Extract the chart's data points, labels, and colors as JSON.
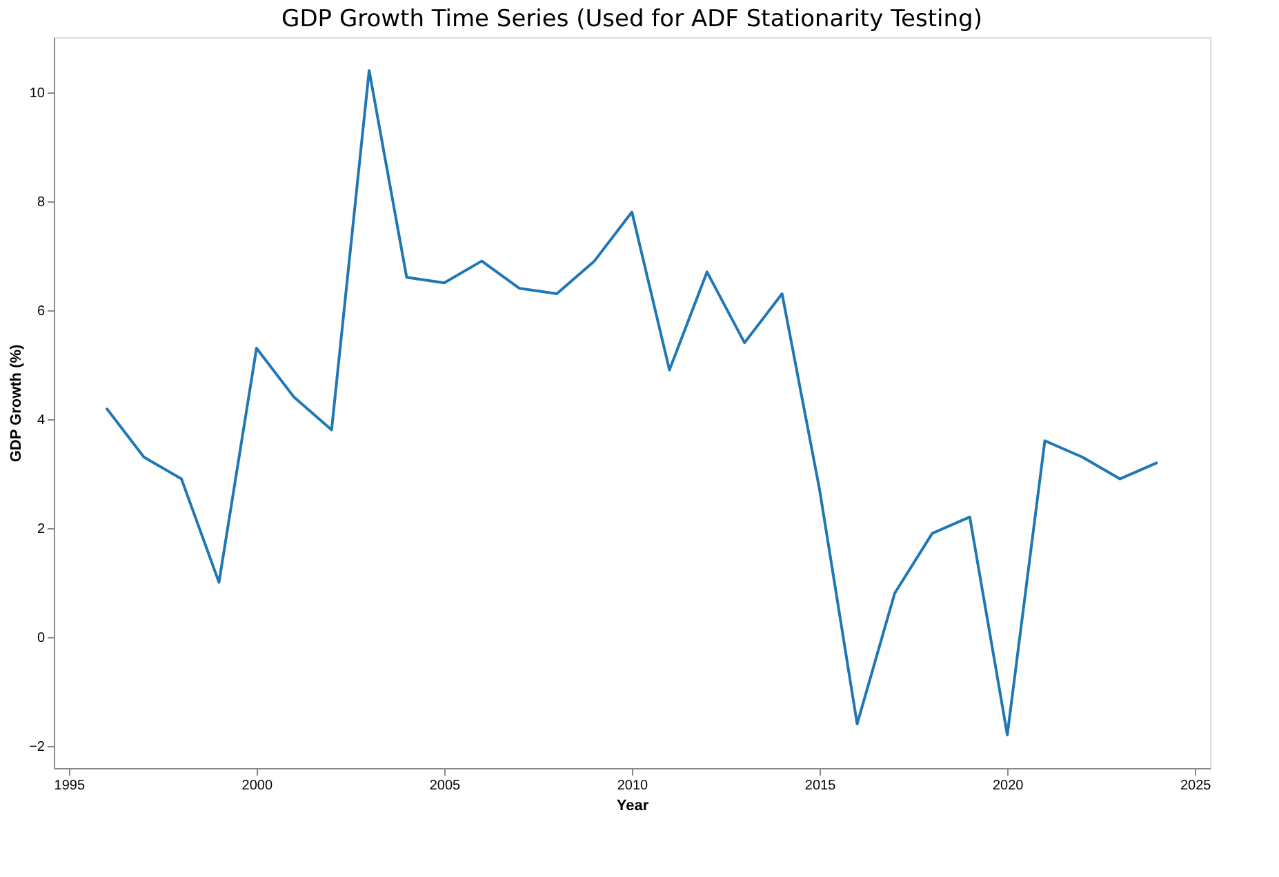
{
  "chart_data": {
    "type": "line",
    "title": "GDP Growth Time Series (Used for ADF Stationarity Testing)",
    "xlabel": "Year",
    "ylabel": "GDP Growth (%)",
    "x": [
      1996,
      1997,
      1998,
      1999,
      2000,
      2001,
      2002,
      2003,
      2004,
      2005,
      2006,
      2007,
      2008,
      2009,
      2010,
      2011,
      2012,
      2013,
      2014,
      2015,
      2016,
      2017,
      2018,
      2019,
      2020,
      2021,
      2022,
      2023,
      2024
    ],
    "series": [
      {
        "color": "#1f77b4",
        "values": [
          4.2,
          3.3,
          2.9,
          1.0,
          5.3,
          4.4,
          3.8,
          10.4,
          6.6,
          6.5,
          6.9,
          6.4,
          6.3,
          6.9,
          7.8,
          4.9,
          6.7,
          5.4,
          6.3,
          2.7,
          -1.6,
          0.8,
          1.9,
          2.2,
          -1.8,
          3.6,
          3.3,
          2.9,
          3.2
        ]
      }
    ],
    "xlim": [
      1994.6,
      2025.4
    ],
    "xticks": [
      1995,
      2000,
      2005,
      2010,
      2015,
      2020,
      2025
    ],
    "ylim": [
      -2.41,
      11.01
    ],
    "yticks": [
      -2,
      0,
      2,
      4,
      6,
      8,
      10
    ],
    "grid": false,
    "legend": false,
    "marker": "none",
    "line_style": "solid"
  }
}
